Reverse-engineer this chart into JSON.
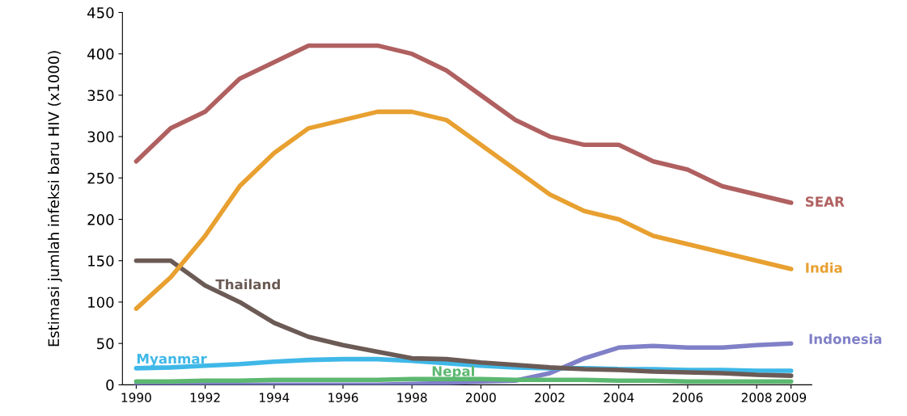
{
  "chart_data": {
    "type": "line",
    "ylabel": "Estimasi jumlah infeksi baru HIV (x1000)",
    "x": [
      1990,
      1991,
      1992,
      1993,
      1994,
      1995,
      1996,
      1997,
      1998,
      1999,
      2000,
      2001,
      2002,
      2003,
      2004,
      2005,
      2006,
      2007,
      2008,
      2009
    ],
    "series": [
      {
        "name": "SEAR",
        "color": "#b06060",
        "values": [
          270,
          310,
          330,
          370,
          390,
          410,
          410,
          410,
          400,
          380,
          350,
          320,
          300,
          290,
          290,
          270,
          260,
          240,
          230,
          220
        ]
      },
      {
        "name": "India",
        "color": "#e8a030",
        "values": [
          92,
          130,
          180,
          240,
          280,
          310,
          320,
          330,
          330,
          320,
          290,
          260,
          230,
          210,
          200,
          180,
          170,
          160,
          150,
          140
        ]
      },
      {
        "name": "Thailand",
        "color": "#6b5a55",
        "values": [
          150,
          150,
          120,
          100,
          75,
          58,
          48,
          40,
          32,
          31,
          27,
          24,
          21,
          19,
          18,
          16,
          15,
          14,
          12,
          11
        ]
      },
      {
        "name": "Myanmar",
        "color": "#3fb8e8",
        "values": [
          20,
          21,
          23,
          25,
          28,
          30,
          31,
          31,
          29,
          26,
          23,
          21,
          20,
          20,
          19,
          19,
          18,
          18,
          17,
          17
        ]
      },
      {
        "name": "Nepal",
        "color": "#5cb870",
        "values": [
          4,
          4,
          5,
          5,
          6,
          6,
          6,
          6,
          7,
          7,
          7,
          6,
          6,
          6,
          5,
          5,
          4,
          4,
          4,
          4
        ]
      },
      {
        "name": "Indonesia",
        "color": "#8080c8",
        "values": [
          0,
          0,
          0,
          0,
          0,
          0,
          0,
          0,
          1,
          2,
          4,
          5,
          14,
          32,
          45,
          47,
          45,
          45,
          48,
          50
        ]
      }
    ],
    "xlim": [
      1989.6,
      2009.6
    ],
    "xticks": [
      1990,
      1992,
      1994,
      1996,
      1998,
      2000,
      2002,
      2004,
      2006,
      2008,
      2009
    ],
    "ylim": [
      0,
      450
    ],
    "yticks": [
      0,
      50,
      100,
      150,
      200,
      250,
      300,
      350,
      400,
      450
    ],
    "grid": false,
    "legend": false,
    "marker": "none",
    "line_style": "solid"
  }
}
